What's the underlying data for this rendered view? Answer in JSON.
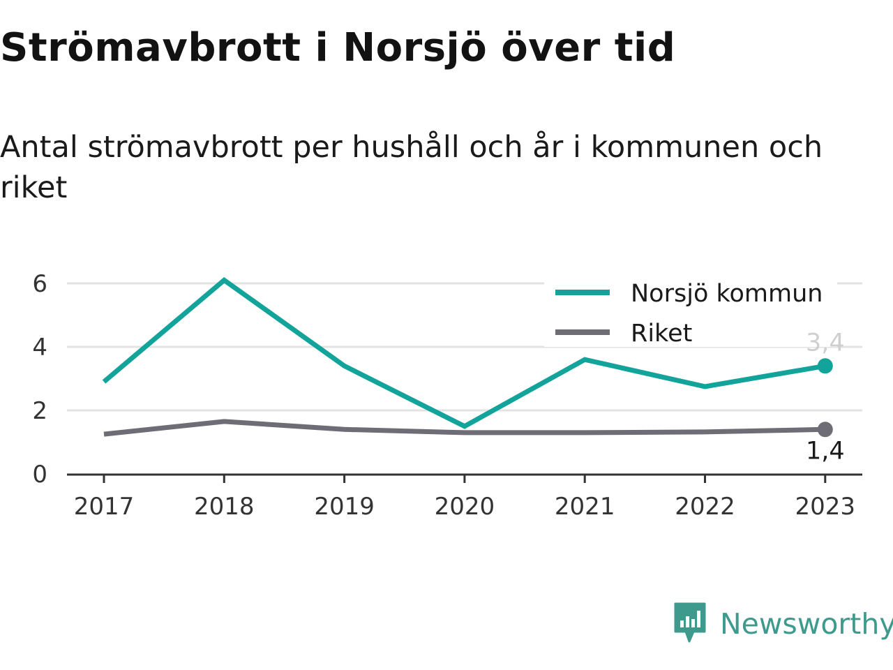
{
  "title": "Strömavbrott i Norsjö över tid",
  "subtitle": "Antal strömavbrott per hushåll och år i kommunen och riket",
  "brand": {
    "name": "Newsworthy",
    "icon": "newsworthy-logo-icon",
    "color": "#3d9a8c"
  },
  "chart_data": {
    "type": "line",
    "title": "Strömavbrott i Norsjö över tid",
    "subtitle": "Antal strömavbrott per hushåll och år i kommunen och riket",
    "xlabel": "",
    "ylabel": "",
    "categories": [
      "2017",
      "2018",
      "2019",
      "2020",
      "2021",
      "2022",
      "2023"
    ],
    "ylim": [
      0,
      6.5
    ],
    "yticks": [
      0,
      2,
      4,
      6
    ],
    "grid": true,
    "legend_position": "top-right",
    "series": [
      {
        "name": "Norsjö kommun",
        "color": "#12a39a",
        "values": [
          2.9,
          6.1,
          3.4,
          1.5,
          3.6,
          2.75,
          3.4
        ],
        "end_label": "3,4",
        "end_label_color": "#cfcfcf"
      },
      {
        "name": "Riket",
        "color": "#6e6d75",
        "values": [
          1.25,
          1.65,
          1.4,
          1.3,
          1.3,
          1.32,
          1.4
        ],
        "end_label": "1,4",
        "end_label_color": "#1a1a1a"
      }
    ]
  }
}
